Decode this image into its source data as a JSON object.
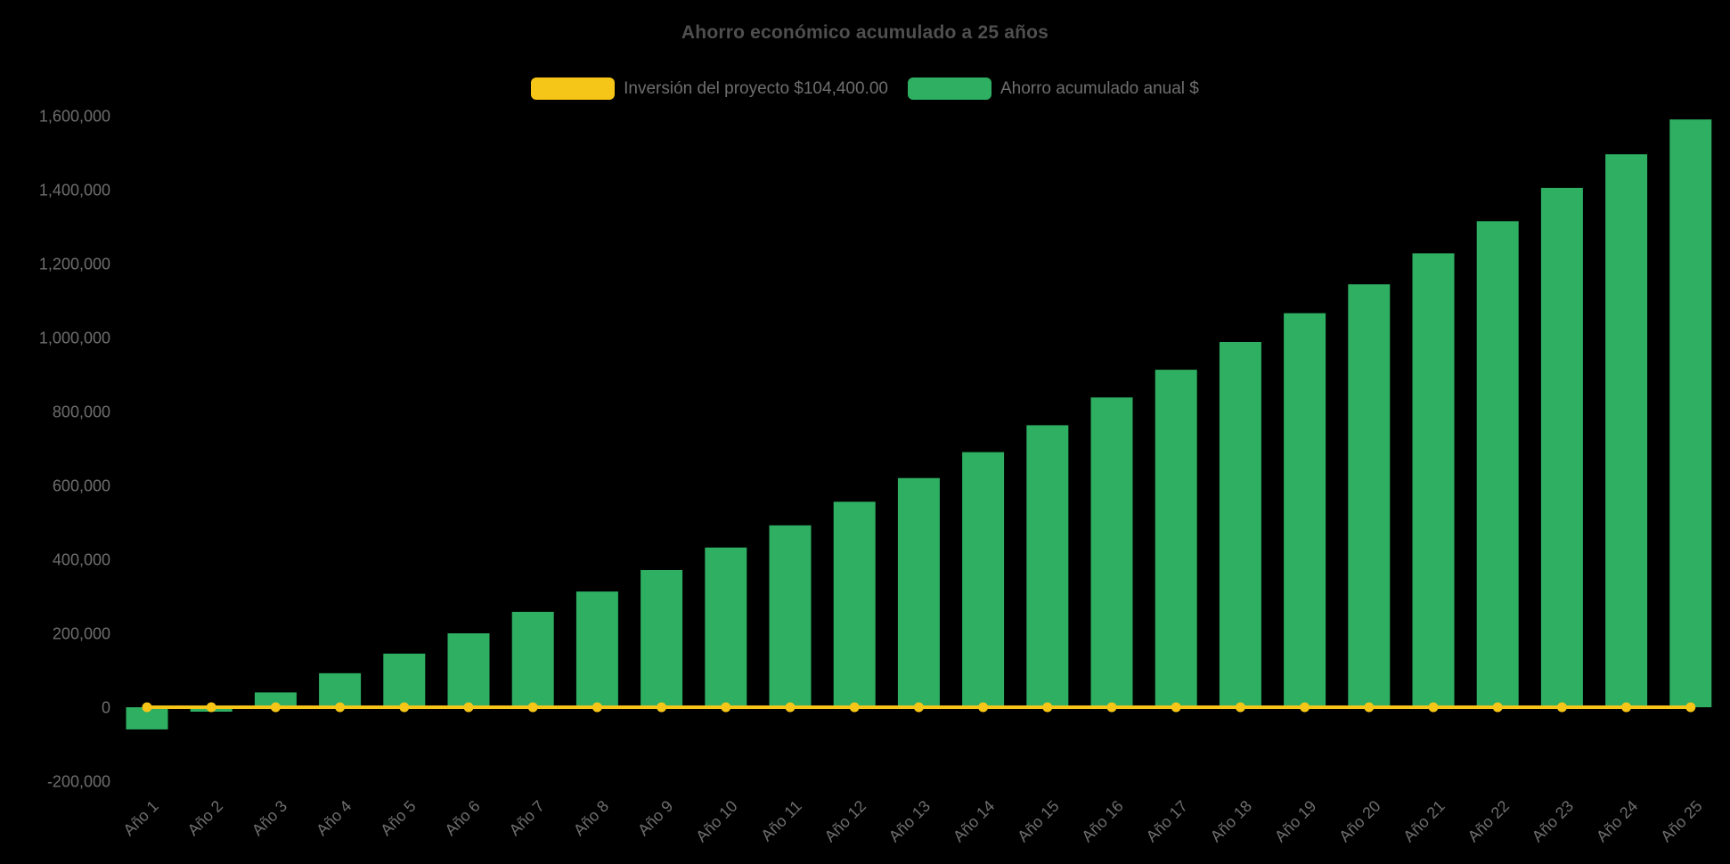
{
  "title": "Ahorro económico acumulado a 25 años",
  "legend": {
    "items": [
      {
        "label": "Inversión del proyecto $104,400.00",
        "color": "#f5c518"
      },
      {
        "label": "Ahorro acumulado anual $",
        "color": "#2eaf62"
      }
    ]
  },
  "colors": {
    "background": "#000000",
    "title_text": "#4f4f4f",
    "axis_text": "#6e6e6e",
    "bar_green": "#2eaf62",
    "line_yellow": "#f5c518"
  },
  "chart_data": {
    "type": "bar",
    "title": "Ahorro económico acumulado a 25 años",
    "categories": [
      "Año 1",
      "Año 2",
      "Año 3",
      "Año 4",
      "Año 5",
      "Año 6",
      "Año 7",
      "Año 8",
      "Año 9",
      "Año 10",
      "Año 11",
      "Año 12",
      "Año 13",
      "Año 14",
      "Año 15",
      "Año 16",
      "Año 17",
      "Año 18",
      "Año 19",
      "Año 20",
      "Año 21",
      "Año 22",
      "Año 23",
      "Año 24",
      "Año 25"
    ],
    "series": [
      {
        "name": "Ahorro acumulado anual $",
        "type": "bar",
        "color": "#2eaf62",
        "values": [
          -60000,
          -12000,
          40000,
          92000,
          145000,
          200000,
          258000,
          313000,
          371000,
          432000,
          492000,
          556000,
          620000,
          690000,
          763000,
          838000,
          913000,
          988000,
          1066000,
          1144000,
          1228000,
          1315000,
          1405000,
          1496000,
          1590000
        ]
      },
      {
        "name": "Inversión del proyecto $104,400.00",
        "type": "line",
        "color": "#f5c518",
        "values": [
          0,
          0,
          0,
          0,
          0,
          0,
          0,
          0,
          0,
          0,
          0,
          0,
          0,
          0,
          0,
          0,
          0,
          0,
          0,
          0,
          0,
          0,
          0,
          0,
          0
        ]
      }
    ],
    "xlabel": "",
    "ylabel": "",
    "ylim": [
      -200000,
      1600000
    ],
    "ytick_step": 200000,
    "ytick_labels": [
      "-200,000",
      "0",
      "200,000",
      "400,000",
      "600,000",
      "800,000",
      "1,000,000",
      "1,200,000",
      "1,400,000",
      "1,600,000"
    ],
    "grid": false,
    "legend_position": "top",
    "x_label_rotation_deg": -45
  }
}
